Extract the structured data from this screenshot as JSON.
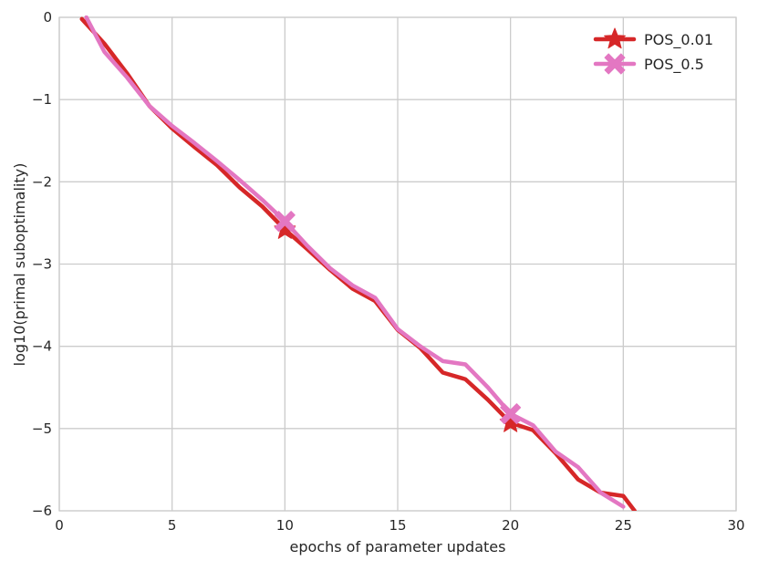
{
  "chart_data": {
    "type": "line",
    "xlabel": "epochs of parameter updates",
    "ylabel": "log10(primal suboptimality)",
    "xlim": [
      0,
      30
    ],
    "ylim": [
      -6,
      0
    ],
    "xticks": [
      0,
      5,
      10,
      15,
      20,
      25,
      30
    ],
    "yticks": [
      0,
      -1,
      -2,
      -3,
      -4,
      -5,
      -6
    ],
    "xtick_labels": [
      "0",
      "5",
      "10",
      "15",
      "20",
      "25",
      "30"
    ],
    "ytick_labels": [
      "0",
      "−1",
      "−2",
      "−3",
      "−4",
      "−5",
      "−6"
    ],
    "grid": true,
    "legend_position": "top-right",
    "series": [
      {
        "name": "POS_0.01",
        "color": "#d62728",
        "marker": "star",
        "marker_x": [
          10,
          20
        ],
        "x": [
          1,
          2,
          3,
          4,
          5,
          6,
          7,
          8,
          9,
          10,
          11,
          12,
          13,
          14,
          15,
          16,
          17,
          18,
          19,
          20,
          21,
          22,
          23,
          24,
          25,
          25.5
        ],
        "y": [
          -0.02,
          -0.32,
          -0.68,
          -1.08,
          -1.35,
          -1.58,
          -1.8,
          -2.07,
          -2.3,
          -2.58,
          -2.82,
          -3.07,
          -3.3,
          -3.45,
          -3.8,
          -4.02,
          -4.32,
          -4.4,
          -4.65,
          -4.93,
          -5.02,
          -5.3,
          -5.62,
          -5.78,
          -5.82,
          -6.0
        ]
      },
      {
        "name": "POS_0.5",
        "color": "#e377c2",
        "marker": "x",
        "marker_x": [
          10,
          20
        ],
        "x": [
          1.2,
          2,
          3,
          4,
          5,
          6,
          7,
          8,
          9,
          10,
          11,
          12,
          13,
          14,
          15,
          16,
          17,
          18,
          19,
          20,
          21,
          22,
          23,
          24,
          25
        ],
        "y": [
          0.0,
          -0.42,
          -0.73,
          -1.08,
          -1.32,
          -1.53,
          -1.75,
          -1.98,
          -2.22,
          -2.48,
          -2.78,
          -3.05,
          -3.26,
          -3.41,
          -3.79,
          -4.0,
          -4.18,
          -4.22,
          -4.5,
          -4.82,
          -4.96,
          -5.28,
          -5.47,
          -5.78,
          -5.95
        ]
      }
    ]
  }
}
